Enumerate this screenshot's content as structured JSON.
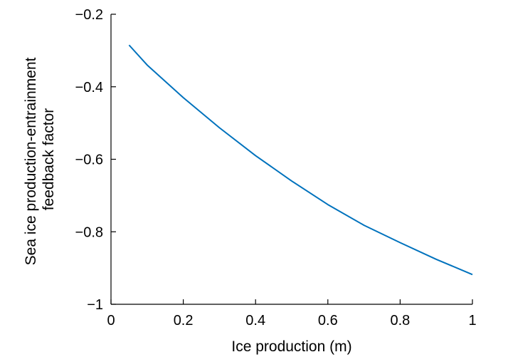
{
  "chart_data": {
    "type": "line",
    "title": "",
    "xlabel": "Ice production (m)",
    "ylabel_lines": [
      "Sea ice production-entrainment",
      "feedback factor"
    ],
    "xlim": [
      0,
      1
    ],
    "ylim": [
      -1,
      -0.2
    ],
    "x_ticks": [
      {
        "value": 0,
        "label": "0"
      },
      {
        "value": 0.2,
        "label": "0.2"
      },
      {
        "value": 0.4,
        "label": "0.4"
      },
      {
        "value": 0.6,
        "label": "0.6"
      },
      {
        "value": 0.8,
        "label": "0.8"
      },
      {
        "value": 1,
        "label": "1"
      }
    ],
    "y_ticks": [
      {
        "value": -0.2,
        "label": "−0.2"
      },
      {
        "value": -0.4,
        "label": "−0.4"
      },
      {
        "value": -0.6,
        "label": "−0.6"
      },
      {
        "value": -0.8,
        "label": "−0.8"
      },
      {
        "value": -1,
        "label": "−1"
      }
    ],
    "grid": false,
    "series": [
      {
        "color": "#0072bd",
        "x": [
          0.05,
          0.1,
          0.2,
          0.3,
          0.4,
          0.5,
          0.6,
          0.7,
          0.8,
          0.9,
          1.0
        ],
        "y": [
          -0.285,
          -0.34,
          -0.43,
          -0.513,
          -0.59,
          -0.66,
          -0.725,
          -0.782,
          -0.83,
          -0.876,
          -0.918
        ]
      }
    ]
  }
}
